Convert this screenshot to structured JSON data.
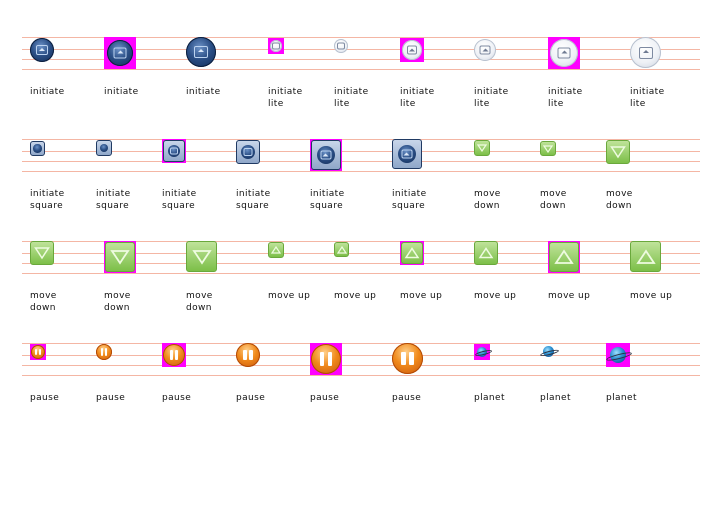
{
  "rows": [
    {
      "items": [
        {
          "label": "initiate",
          "icon": "initiate-icon"
        },
        {
          "label": "initiate",
          "icon": "initiate-icon"
        },
        {
          "label": "initiate",
          "icon": "initiate-icon"
        },
        {
          "label": "initiate\nlite",
          "icon": "initiate-lite-icon"
        },
        {
          "label": "initiate\nlite",
          "icon": "initiate-lite-icon"
        },
        {
          "label": "initiate\nlite",
          "icon": "initiate-lite-icon"
        },
        {
          "label": "initiate\nlite",
          "icon": "initiate-lite-icon"
        },
        {
          "label": "initiate\nlite",
          "icon": "initiate-lite-icon"
        },
        {
          "label": "initiate\nlite",
          "icon": "initiate-lite-icon"
        }
      ]
    },
    {
      "items": [
        {
          "label": "initiate\nsquare",
          "icon": "initiate-square-icon"
        },
        {
          "label": "initiate\nsquare",
          "icon": "initiate-square-icon"
        },
        {
          "label": "initiate\nsquare",
          "icon": "initiate-square-icon"
        },
        {
          "label": "initiate\nsquare",
          "icon": "initiate-square-icon"
        },
        {
          "label": "initiate\nsquare",
          "icon": "initiate-square-icon"
        },
        {
          "label": "initiate\nsquare",
          "icon": "initiate-square-icon"
        },
        {
          "label": "move\ndown",
          "icon": "move-down-icon"
        },
        {
          "label": "move\ndown",
          "icon": "move-down-icon"
        },
        {
          "label": "move\ndown",
          "icon": "move-down-icon"
        }
      ]
    },
    {
      "items": [
        {
          "label": "move\ndown",
          "icon": "move-down-icon"
        },
        {
          "label": "move\ndown",
          "icon": "move-down-icon"
        },
        {
          "label": "move\ndown",
          "icon": "move-down-icon"
        },
        {
          "label": "move up",
          "icon": "move-up-icon"
        },
        {
          "label": "move up",
          "icon": "move-up-icon"
        },
        {
          "label": "move up",
          "icon": "move-up-icon"
        },
        {
          "label": "move up",
          "icon": "move-up-icon"
        },
        {
          "label": "move up",
          "icon": "move-up-icon"
        },
        {
          "label": "move up",
          "icon": "move-up-icon"
        }
      ]
    },
    {
      "items": [
        {
          "label": "pause",
          "icon": "pause-icon"
        },
        {
          "label": "pause",
          "icon": "pause-icon"
        },
        {
          "label": "pause",
          "icon": "pause-icon"
        },
        {
          "label": "pause",
          "icon": "pause-icon"
        },
        {
          "label": "pause",
          "icon": "pause-icon"
        },
        {
          "label": "pause",
          "icon": "pause-icon"
        },
        {
          "label": "planet",
          "icon": "planet-icon"
        },
        {
          "label": "planet",
          "icon": "planet-icon"
        },
        {
          "label": "planet",
          "icon": "planet-icon"
        }
      ]
    }
  ],
  "colors": {
    "guide_line": "#f4b6a4",
    "icon_background": "#ff00ff"
  }
}
